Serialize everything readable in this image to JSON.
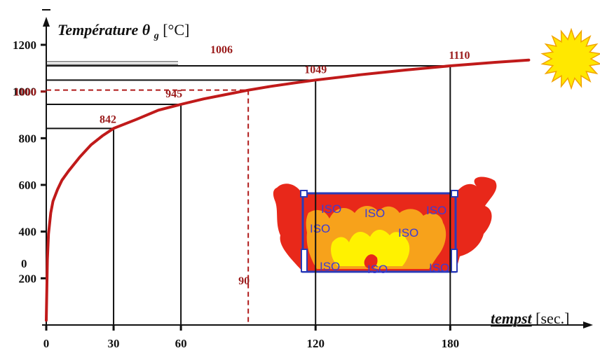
{
  "chart_data": {
    "type": "line",
    "title": "",
    "ylabel": "Température",
    "ylabel_symbol": "θ",
    "ylabel_subscript": "g",
    "ylabel_unit": "[°C]",
    "xlabel": "tempst",
    "xlabel_unit": "[sec.]",
    "xlim": [
      0,
      223
    ],
    "ylim": [
      0,
      1250
    ],
    "x_ticks": [
      "0",
      "30",
      "60",
      "120",
      "180"
    ],
    "x_tick_values": [
      0,
      30,
      60,
      120,
      180
    ],
    "y_ticks": [
      "200",
      "400",
      "600",
      "800",
      "1000",
      "1200"
    ],
    "y_tick_values": [
      200,
      400,
      600,
      800,
      1000,
      1200
    ],
    "y_stray_label": "0",
    "series": [
      {
        "x": [
          0,
          0.5,
          1,
          2,
          3,
          5,
          7,
          10,
          15,
          20,
          25,
          30,
          40,
          50,
          60,
          70,
          80,
          90,
          100,
          110,
          120,
          140,
          160,
          180,
          200,
          215
        ],
        "values": [
          20,
          280,
          390,
          480,
          530,
          580,
          620,
          660,
          720,
          772,
          810,
          842,
          880,
          920,
          945,
          968,
          987,
          1006,
          1022,
          1036,
          1049,
          1072,
          1092,
          1110,
          1125,
          1135
        ],
        "color": "#c01a1a"
      }
    ],
    "highlights": [
      {
        "x": 30,
        "y": 842,
        "label": "842",
        "style": "solid"
      },
      {
        "x": 60,
        "y": 945,
        "label": "945",
        "style": "solid"
      },
      {
        "x": 90,
        "y": 1006,
        "label": "1006",
        "x_label": "90",
        "style": "dashed"
      },
      {
        "x": 120,
        "y": 1049,
        "label": "1049",
        "style": "solid"
      },
      {
        "x": 180,
        "y": 1110,
        "label": "1110",
        "style": "solid"
      }
    ],
    "y_highlight_label": "1000",
    "colors": {
      "curve": "#c01a1a",
      "highlight_text": "#9a1a1a",
      "axis": "#111111",
      "sun": "#ffe800",
      "fire_outer": "#e8281a",
      "fire_inner": "#f7a21b",
      "fire_core": "#fff200",
      "frame": "#2a3bb8",
      "iso_text": "#3b3bd6"
    },
    "illustrations": {
      "sun_icon": "sun",
      "fire_icon": "fire",
      "furnace_labels": [
        "ISO",
        "ISO",
        "ISO",
        "ISO",
        "ISO",
        "ISO",
        "ISO",
        "ISO"
      ]
    }
  }
}
